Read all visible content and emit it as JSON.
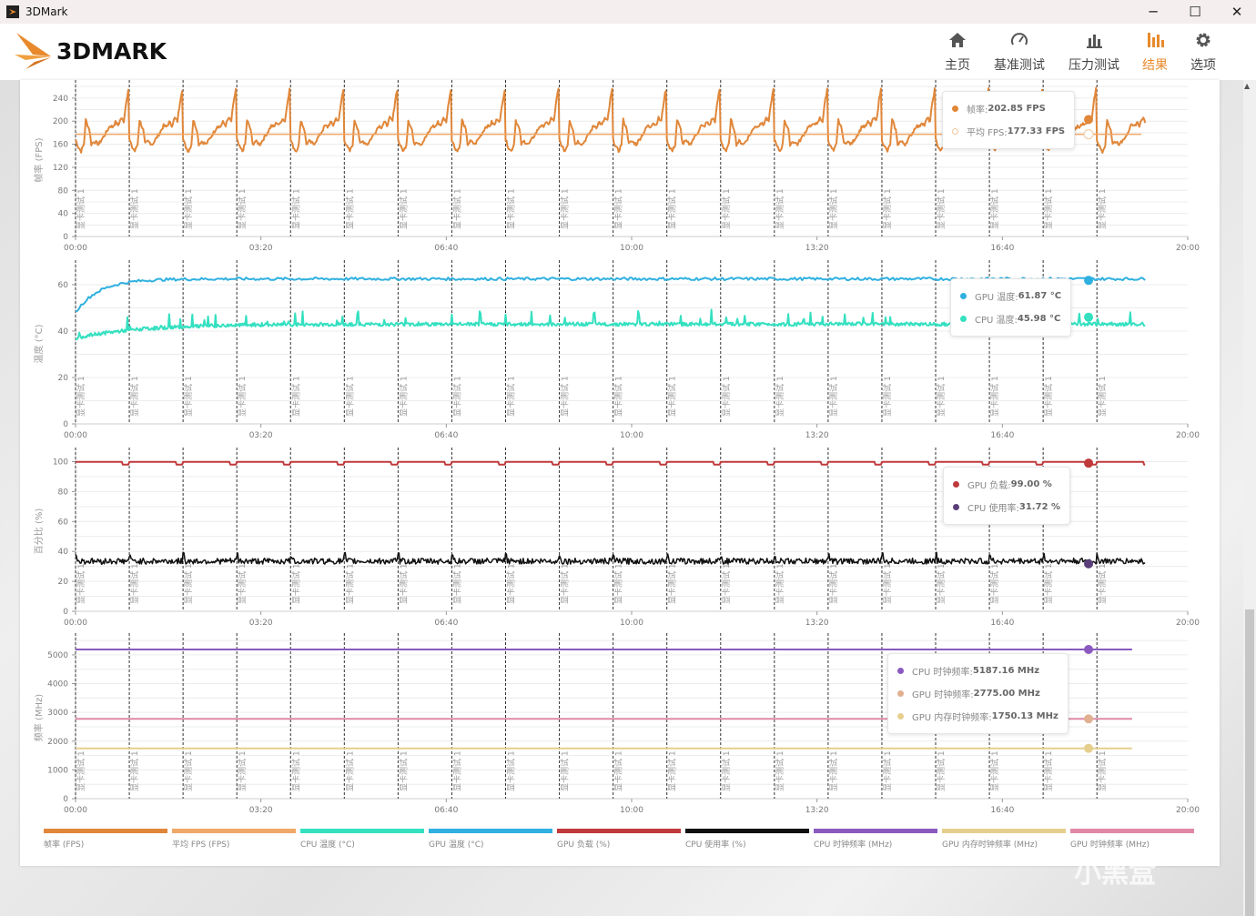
{
  "window": {
    "title": "3DMark",
    "minimize": "─",
    "maximize": "☐",
    "close": "✕"
  },
  "logo": {
    "text": "3DMARK"
  },
  "nav": [
    {
      "label": "主页",
      "icon": "home-icon",
      "active": false
    },
    {
      "label": "基准测试",
      "icon": "gauge-icon",
      "active": false
    },
    {
      "label": "压力测试",
      "icon": "bar-chart-icon",
      "active": false
    },
    {
      "label": "结果",
      "icon": "results-icon",
      "active": true
    },
    {
      "label": "选项",
      "icon": "gear-icon",
      "active": false
    }
  ],
  "colors": {
    "accent": "#e88a2c",
    "fps": "#e0873a",
    "avg_fps": "#f0a868",
    "cpu_temp": "#34e0c0",
    "gpu_temp": "#2fb0e0",
    "gpu_load": "#c0393b",
    "cpu_usage": "#111111",
    "cpu_clock": "#8a5ac0",
    "gpu_mem_clock": "#e6cf8e",
    "gpu_clock": "#e088a8"
  },
  "chart_data": [
    {
      "type": "line",
      "ylabel": "帧率 (FPS)",
      "ylim": [
        0,
        265
      ],
      "yticks": [
        0,
        40,
        80,
        120,
        160,
        200,
        240
      ],
      "xlim_seconds": [
        0,
        1200
      ],
      "xticks": [
        "00:00",
        "03:20",
        "06:40",
        "10:00",
        "13:20",
        "16:40",
        "20:00"
      ],
      "markers": {
        "label": "显卡测试 1",
        "interval_seconds": 58,
        "count": 20
      },
      "data_end_seconds": 1154,
      "series": [
        {
          "name": "帧率",
          "unit": "FPS",
          "cycle_profile": [
            [
              0,
              168
            ],
            [
              3,
              155
            ],
            [
              6,
              148
            ],
            [
              9,
              160
            ],
            [
              11,
              202
            ],
            [
              15,
              185
            ],
            [
              17,
              160
            ],
            [
              20,
              165
            ],
            [
              25,
              160
            ],
            [
              29,
              170
            ],
            [
              33,
              180
            ],
            [
              37,
              192
            ],
            [
              40,
              190
            ],
            [
              43,
              198
            ],
            [
              46,
              193
            ],
            [
              49,
              205
            ],
            [
              52,
              200
            ],
            [
              55,
              238
            ],
            [
              57,
              255
            ]
          ],
          "hover_value": "202.85 FPS"
        },
        {
          "name": "平均 FPS",
          "unit": "FPS",
          "constant": 177.33,
          "hover_value": "177.33 FPS"
        }
      ],
      "hover_seconds": 1093
    },
    {
      "type": "line",
      "ylabel": "温度 (°C)",
      "ylim": [
        0,
        69
      ],
      "yticks": [
        0,
        20,
        40,
        60
      ],
      "xticks": [
        "00:00",
        "03:20",
        "06:40",
        "10:00",
        "13:20",
        "16:40",
        "20:00"
      ],
      "series": [
        {
          "name": "GPU 温度",
          "start": 48,
          "plateau": 62.5,
          "hover_value": "61.87 °C"
        },
        {
          "name": "CPU 温度",
          "start": 37,
          "plateau": 43,
          "hover_value": "45.98 °C"
        }
      ]
    },
    {
      "type": "line",
      "ylabel": "百分比 (%)",
      "ylim": [
        0,
        107
      ],
      "yticks": [
        0,
        20,
        40,
        60,
        80,
        100
      ],
      "xticks": [
        "00:00",
        "03:20",
        "06:40",
        "10:00",
        "13:20",
        "16:40",
        "20:00"
      ],
      "series": [
        {
          "name": "GPU 负载",
          "level": 99.8,
          "dip": 98,
          "hover_value": "99.00 %"
        },
        {
          "name": "CPU 使用率",
          "level": 33.5,
          "hover_value": "31.72 %"
        }
      ]
    },
    {
      "type": "line",
      "ylabel": "频率 (MHz)",
      "ylim": [
        0,
        5630
      ],
      "yticks": [
        0,
        1000,
        2000,
        3000,
        4000,
        5000
      ],
      "xticks": [
        "00:00",
        "03:20",
        "06:40",
        "10:00",
        "13:20",
        "16:40",
        "20:00"
      ],
      "series": [
        {
          "name": "CPU 时钟频率",
          "level": 5187.16,
          "hover_value": "5187.16 MHz"
        },
        {
          "name": "GPU 时钟频率",
          "level": 2775,
          "hover_value": "2775.00 MHz"
        },
        {
          "name": "GPU 内存时钟频率",
          "level": 1750.13,
          "hover_value": "1750.13 MHz"
        }
      ]
    }
  ],
  "tooltips": [
    [
      {
        "label": "帧率: ",
        "value": "202.85 FPS",
        "color": "#e0873a",
        "hollow": false
      },
      {
        "label": "平均 FPS: ",
        "value": "177.33 FPS",
        "color": "#f0c8a0",
        "hollow": true
      }
    ],
    [
      {
        "label": "GPU 温度: ",
        "value": "61.87 °C",
        "color": "#2fb0e0"
      },
      {
        "label": "CPU 温度: ",
        "value": "45.98 °C",
        "color": "#34e0c0"
      }
    ],
    [
      {
        "label": "GPU 负载: ",
        "value": "99.00 %",
        "color": "#c0393b"
      },
      {
        "label": "CPU 使用率: ",
        "value": "31.72 %",
        "color": "#5a3f7a"
      }
    ],
    [
      {
        "label": "CPU 时钟频率: ",
        "value": "5187.16 MHz",
        "color": "#8a5ac0"
      },
      {
        "label": "GPU 时钟频率: ",
        "value": "2775.00 MHz",
        "color": "#e0b090"
      },
      {
        "label": "GPU 内存时钟频率: ",
        "value": "1750.13 MHz",
        "color": "#e6cf8e"
      }
    ]
  ],
  "legend": [
    {
      "label": "帧率 (FPS)",
      "color": "#e0873a"
    },
    {
      "label": "平均 FPS (FPS)",
      "color": "#f0a868"
    },
    {
      "label": "CPU 温度 (°C)",
      "color": "#34e0c0"
    },
    {
      "label": "GPU 温度 (°C)",
      "color": "#2fb0e0"
    },
    {
      "label": "GPU 负载 (%)",
      "color": "#c0393b"
    },
    {
      "label": "CPU 使用率 (%)",
      "color": "#111111"
    },
    {
      "label": "CPU 时钟频率 (MHz)",
      "color": "#8a5ac0"
    },
    {
      "label": "GPU 内存时钟频率 (MHz)",
      "color": "#e6cf8e"
    },
    {
      "label": "GPU 时钟频率 (MHz)",
      "color": "#e088a8"
    }
  ],
  "watermark": "小黑盒"
}
